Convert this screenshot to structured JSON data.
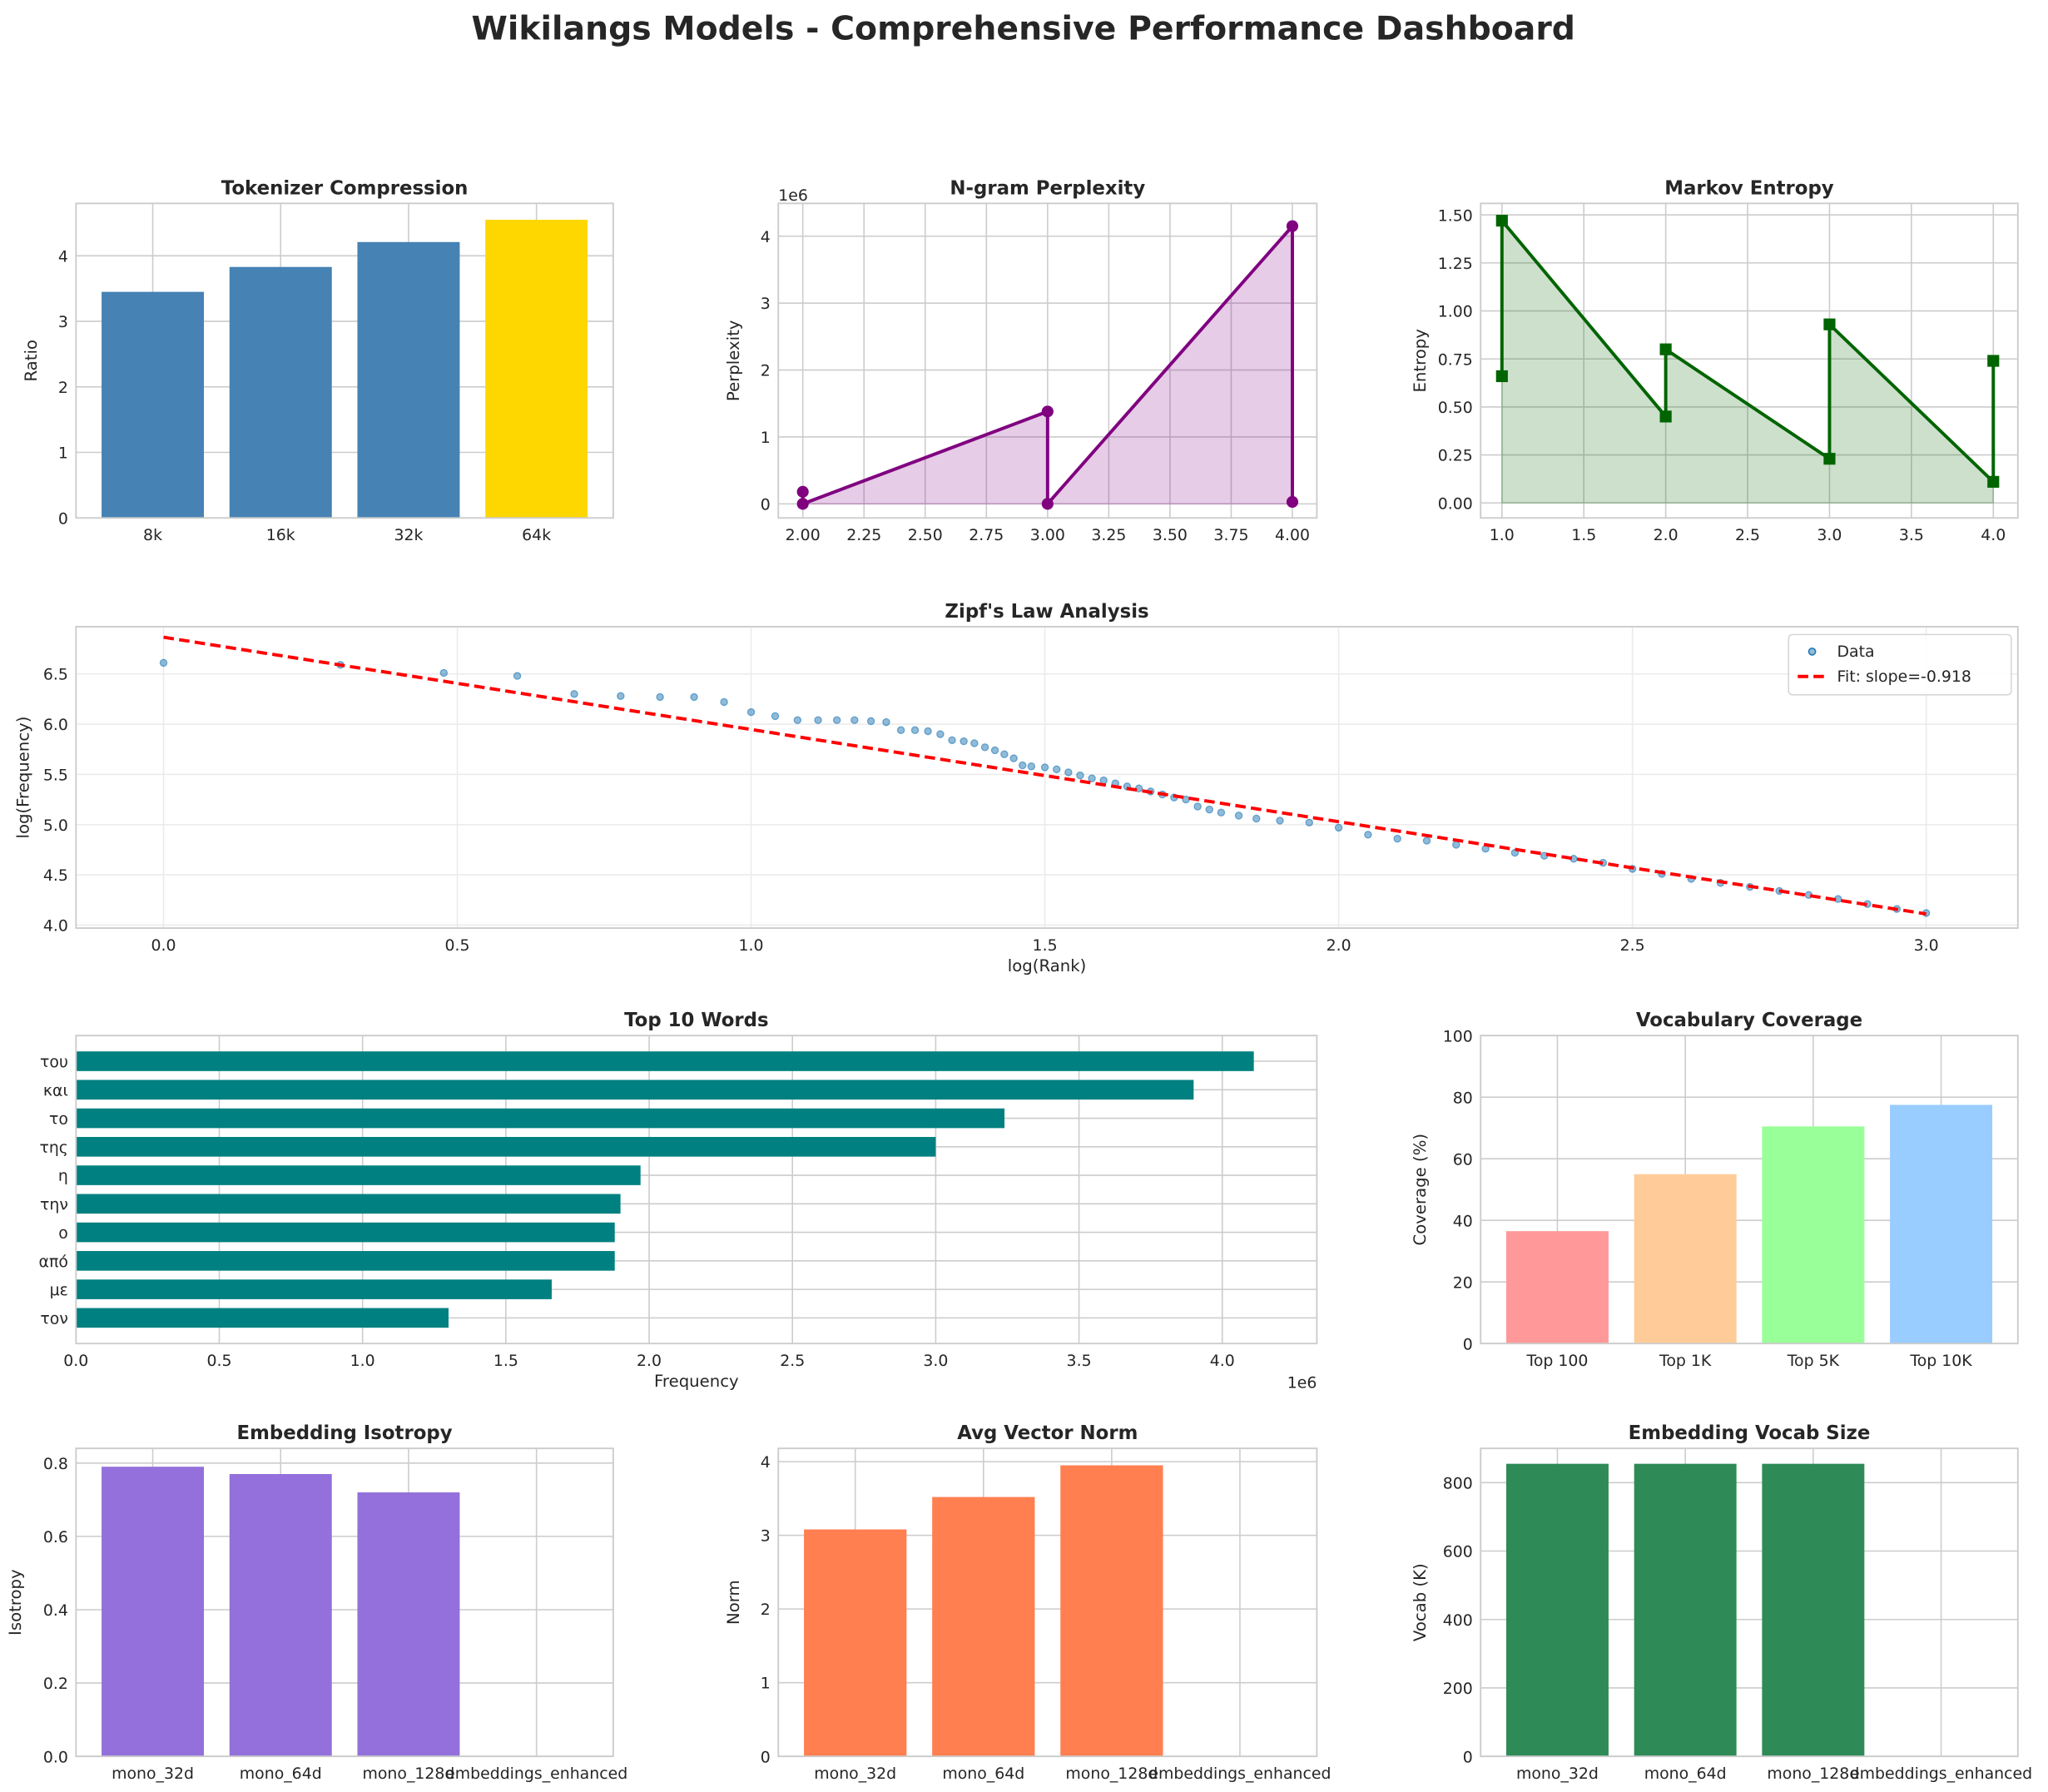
{
  "title": "Wikilangs Models - Comprehensive Performance Dashboard",
  "chart_data": [
    {
      "id": "tok",
      "type": "bar",
      "title": "Tokenizer Compression",
      "xlabel": "",
      "ylabel": "Ratio",
      "categories": [
        "8k",
        "16k",
        "32k",
        "64k"
      ],
      "values": [
        3.45,
        3.83,
        4.21,
        4.55
      ],
      "colors": [
        "#4682b4",
        "#4682b4",
        "#4682b4",
        "#ffd700"
      ],
      "ylim": [
        0,
        4.8
      ],
      "yticks": [
        0,
        1,
        2,
        3,
        4
      ],
      "ytick_labels": [
        "0",
        "1",
        "2",
        "3",
        "4"
      ],
      "grid": true
    },
    {
      "id": "ppl",
      "type": "area",
      "title": "N-gram Perplexity",
      "xlabel": "",
      "ylabel": "Perplexity",
      "offset_label": "1e6",
      "x": [
        2,
        2,
        3,
        3,
        4,
        4
      ],
      "y": [
        180000,
        0,
        1380000,
        0,
        4150000,
        30000
      ],
      "color": "#800080",
      "xlim": [
        1.9,
        4.1
      ],
      "ylim": [
        -210000,
        4490000
      ],
      "xticks": [
        2,
        2.25,
        2.5,
        2.75,
        3,
        3.25,
        3.5,
        3.75,
        4
      ],
      "xtick_labels": [
        "2.00",
        "2.25",
        "2.50",
        "2.75",
        "3.00",
        "3.25",
        "3.50",
        "3.75",
        "4.00"
      ],
      "yticks": [
        0,
        1000000,
        2000000,
        3000000,
        4000000
      ],
      "ytick_labels": [
        "0",
        "1",
        "2",
        "3",
        "4"
      ],
      "grid": true
    },
    {
      "id": "mkv",
      "type": "area",
      "title": "Markov Entropy",
      "xlabel": "",
      "ylabel": "Entropy",
      "x": [
        1,
        1,
        2,
        2,
        3,
        3,
        4,
        4
      ],
      "y": [
        0.66,
        1.47,
        0.45,
        0.8,
        0.23,
        0.93,
        0.11,
        0.74
      ],
      "color": "#006400",
      "xlim": [
        0.87,
        4.15
      ],
      "ylim": [
        -0.078,
        1.56
      ],
      "xticks": [
        1,
        1.5,
        2,
        2.5,
        3,
        3.5,
        4
      ],
      "xtick_labels": [
        "1.0",
        "1.5",
        "2.0",
        "2.5",
        "3.0",
        "3.5",
        "4.0"
      ],
      "yticks": [
        0,
        0.25,
        0.5,
        0.75,
        1,
        1.25,
        1.5
      ],
      "ytick_labels": [
        "0.00",
        "0.25",
        "0.50",
        "0.75",
        "1.00",
        "1.25",
        "1.50"
      ],
      "grid": true
    },
    {
      "id": "zipf",
      "type": "scatter",
      "title": "Zipf's Law Analysis",
      "xlabel": "log(Rank)",
      "ylabel": "log(Frequency)",
      "x": [
        0,
        0.301,
        0.477,
        0.602,
        0.699,
        0.778,
        0.845,
        0.903,
        0.954,
        1.0,
        1.041,
        1.079,
        1.114,
        1.146,
        1.176,
        1.204,
        1.23,
        1.255,
        1.279,
        1.301,
        1.322,
        1.342,
        1.362,
        1.38,
        1.398,
        1.415,
        1.431,
        1.447,
        1.462,
        1.477,
        1.5,
        1.52,
        1.54,
        1.56,
        1.58,
        1.6,
        1.62,
        1.64,
        1.66,
        1.68,
        1.7,
        1.72,
        1.74,
        1.76,
        1.78,
        1.8,
        1.83,
        1.86,
        1.9,
        1.95,
        2.0,
        2.05,
        2.1,
        2.15,
        2.2,
        2.25,
        2.3,
        2.35,
        2.4,
        2.45,
        2.5,
        2.55,
        2.6,
        2.65,
        2.7,
        2.75,
        2.8,
        2.85,
        2.9,
        2.95,
        3.0
      ],
      "y": [
        6.61,
        6.59,
        6.51,
        6.48,
        6.3,
        6.28,
        6.27,
        6.27,
        6.22,
        6.12,
        6.08,
        6.04,
        6.04,
        6.04,
        6.04,
        6.03,
        6.02,
        5.94,
        5.94,
        5.93,
        5.9,
        5.84,
        5.83,
        5.81,
        5.77,
        5.74,
        5.7,
        5.66,
        5.59,
        5.58,
        5.57,
        5.55,
        5.52,
        5.49,
        5.46,
        5.44,
        5.41,
        5.38,
        5.36,
        5.33,
        5.3,
        5.27,
        5.25,
        5.18,
        5.15,
        5.12,
        5.09,
        5.06,
        5.04,
        5.02,
        4.97,
        4.9,
        4.86,
        4.84,
        4.8,
        4.76,
        4.72,
        4.69,
        4.66,
        4.62,
        4.56,
        4.51,
        4.46,
        4.42,
        4.38,
        4.34,
        4.3,
        4.26,
        4.21,
        4.16,
        4.12
      ],
      "fit": {
        "slope": -0.918,
        "intercept": 6.865
      },
      "legend": [
        "Data",
        "Fit: slope=-0.918"
      ],
      "legend_placement": "top-right",
      "point_color": "#1f77b4",
      "fit_color": "#ff0000",
      "xlim": [
        -0.149,
        3.156
      ],
      "ylim": [
        3.97,
        6.97
      ],
      "xticks": [
        0,
        0.5,
        1,
        1.5,
        2,
        2.5,
        3
      ],
      "xtick_labels": [
        "0.0",
        "0.5",
        "1.0",
        "1.5",
        "2.0",
        "2.5",
        "3.0"
      ],
      "yticks": [
        4,
        4.5,
        5,
        5.5,
        6,
        6.5
      ],
      "ytick_labels": [
        "4.0",
        "4.5",
        "5.0",
        "5.5",
        "6.0",
        "6.5"
      ],
      "grid": true
    },
    {
      "id": "top",
      "type": "barh",
      "title": "Top 10 Words",
      "xlabel": "Frequency",
      "ylabel": "",
      "offset_label": "1e6",
      "categories": [
        "του",
        "και",
        "το",
        "της",
        "η",
        "την",
        "ο",
        "από",
        "με",
        "τον"
      ],
      "values": [
        4110000,
        3900000,
        3240000,
        3000000,
        1970000,
        1900000,
        1880000,
        1880000,
        1660000,
        1300000
      ],
      "color": "#008080",
      "xlim": [
        0,
        4330000
      ],
      "xticks": [
        0,
        500000,
        1000000,
        1500000,
        2000000,
        2500000,
        3000000,
        3500000,
        4000000
      ],
      "xtick_labels": [
        "0.0",
        "0.5",
        "1.0",
        "1.5",
        "2.0",
        "2.5",
        "3.0",
        "3.5",
        "4.0"
      ],
      "grid": true
    },
    {
      "id": "cov",
      "type": "bar",
      "title": "Vocabulary Coverage",
      "xlabel": "",
      "ylabel": "Coverage (%)",
      "categories": [
        "Top 100",
        "Top 1K",
        "Top 5K",
        "Top 10K"
      ],
      "values": [
        36.5,
        55,
        70.5,
        77.5
      ],
      "colors": [
        "#ff9999",
        "#ffcc99",
        "#99ff99",
        "#99ccff"
      ],
      "ylim": [
        0,
        100
      ],
      "yticks": [
        0,
        20,
        40,
        60,
        80,
        100
      ],
      "ytick_labels": [
        "0",
        "20",
        "40",
        "60",
        "80",
        "100"
      ],
      "grid": true
    },
    {
      "id": "iso",
      "type": "bar",
      "title": "Embedding Isotropy",
      "xlabel": "",
      "ylabel": "Isotropy",
      "categories": [
        "mono_32d",
        "mono_64d",
        "mono_128d",
        "embeddings_enhanced"
      ],
      "values": [
        0.79,
        0.77,
        0.72,
        0
      ],
      "colors": [
        "#9370db",
        "#9370db",
        "#9370db",
        "#9370db"
      ],
      "ylim": [
        0,
        0.84
      ],
      "yticks": [
        0,
        0.2,
        0.4,
        0.6,
        0.8
      ],
      "ytick_labels": [
        "0.0",
        "0.2",
        "0.4",
        "0.6",
        "0.8"
      ],
      "grid": true
    },
    {
      "id": "norm",
      "type": "bar",
      "title": "Avg Vector Norm",
      "xlabel": "",
      "ylabel": "Norm",
      "categories": [
        "mono_32d",
        "mono_64d",
        "mono_128d",
        "embeddings_enhanced"
      ],
      "values": [
        3.08,
        3.52,
        3.95,
        0
      ],
      "colors": [
        "#ff7f50",
        "#ff7f50",
        "#ff7f50",
        "#ff7f50"
      ],
      "ylim": [
        0,
        4.18
      ],
      "yticks": [
        0,
        1,
        2,
        3,
        4
      ],
      "ytick_labels": [
        "0",
        "1",
        "2",
        "3",
        "4"
      ],
      "grid": true
    },
    {
      "id": "voc",
      "type": "bar",
      "title": "Embedding Vocab Size",
      "xlabel": "",
      "ylabel": "Vocab (K)",
      "categories": [
        "mono_32d",
        "mono_64d",
        "mono_128d",
        "embeddings_enhanced"
      ],
      "values": [
        855,
        855,
        855,
        0
      ],
      "colors": [
        "#2e8b57",
        "#2e8b57",
        "#2e8b57",
        "#2e8b57"
      ],
      "ylim": [
        0,
        900
      ],
      "yticks": [
        0,
        200,
        400,
        600,
        800
      ],
      "ytick_labels": [
        "0",
        "200",
        "400",
        "600",
        "800"
      ],
      "grid": true
    }
  ]
}
